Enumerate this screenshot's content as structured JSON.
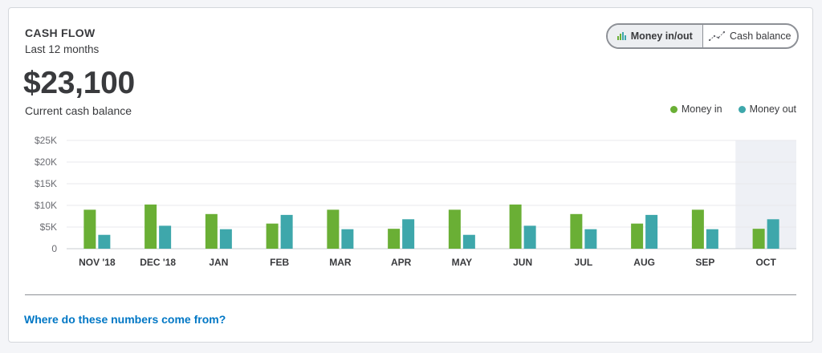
{
  "header": {
    "title": "CASH FLOW",
    "subtitle": "Last 12 months",
    "amount": "$23,100",
    "amount_label": "Current cash balance"
  },
  "toggle": {
    "options": [
      {
        "label": "Money in/out",
        "icon": "bar-chart-icon",
        "active": true
      },
      {
        "label": "Cash balance",
        "icon": "line-chart-icon",
        "active": false
      }
    ]
  },
  "help_link": "Where do these numbers come from?",
  "colors": {
    "money_in": "#6aaf35",
    "money_out": "#3ea7ab",
    "highlight": "#eef0f5",
    "link": "#0077c5"
  },
  "chart_data": {
    "type": "bar",
    "categories": [
      "NOV '18",
      "DEC '18",
      "JAN",
      "FEB",
      "MAR",
      "APR",
      "MAY",
      "JUN",
      "JUL",
      "AUG",
      "SEP",
      "OCT"
    ],
    "series": [
      {
        "name": "Money in",
        "values": [
          9000,
          10200,
          8000,
          5800,
          9000,
          4600,
          9000,
          10200,
          8000,
          5800,
          9000,
          4600
        ]
      },
      {
        "name": "Money out",
        "values": [
          3200,
          5300,
          4500,
          7800,
          4500,
          6800,
          3200,
          5300,
          4500,
          7800,
          4500,
          6800
        ]
      }
    ],
    "y_ticks": [
      "0",
      "$5K",
      "$10K",
      "$15K",
      "$20K",
      "$25K"
    ],
    "ylim": [
      0,
      25000
    ],
    "grid": true,
    "legend_position": "top-right",
    "highlighted_category": "OCT"
  }
}
